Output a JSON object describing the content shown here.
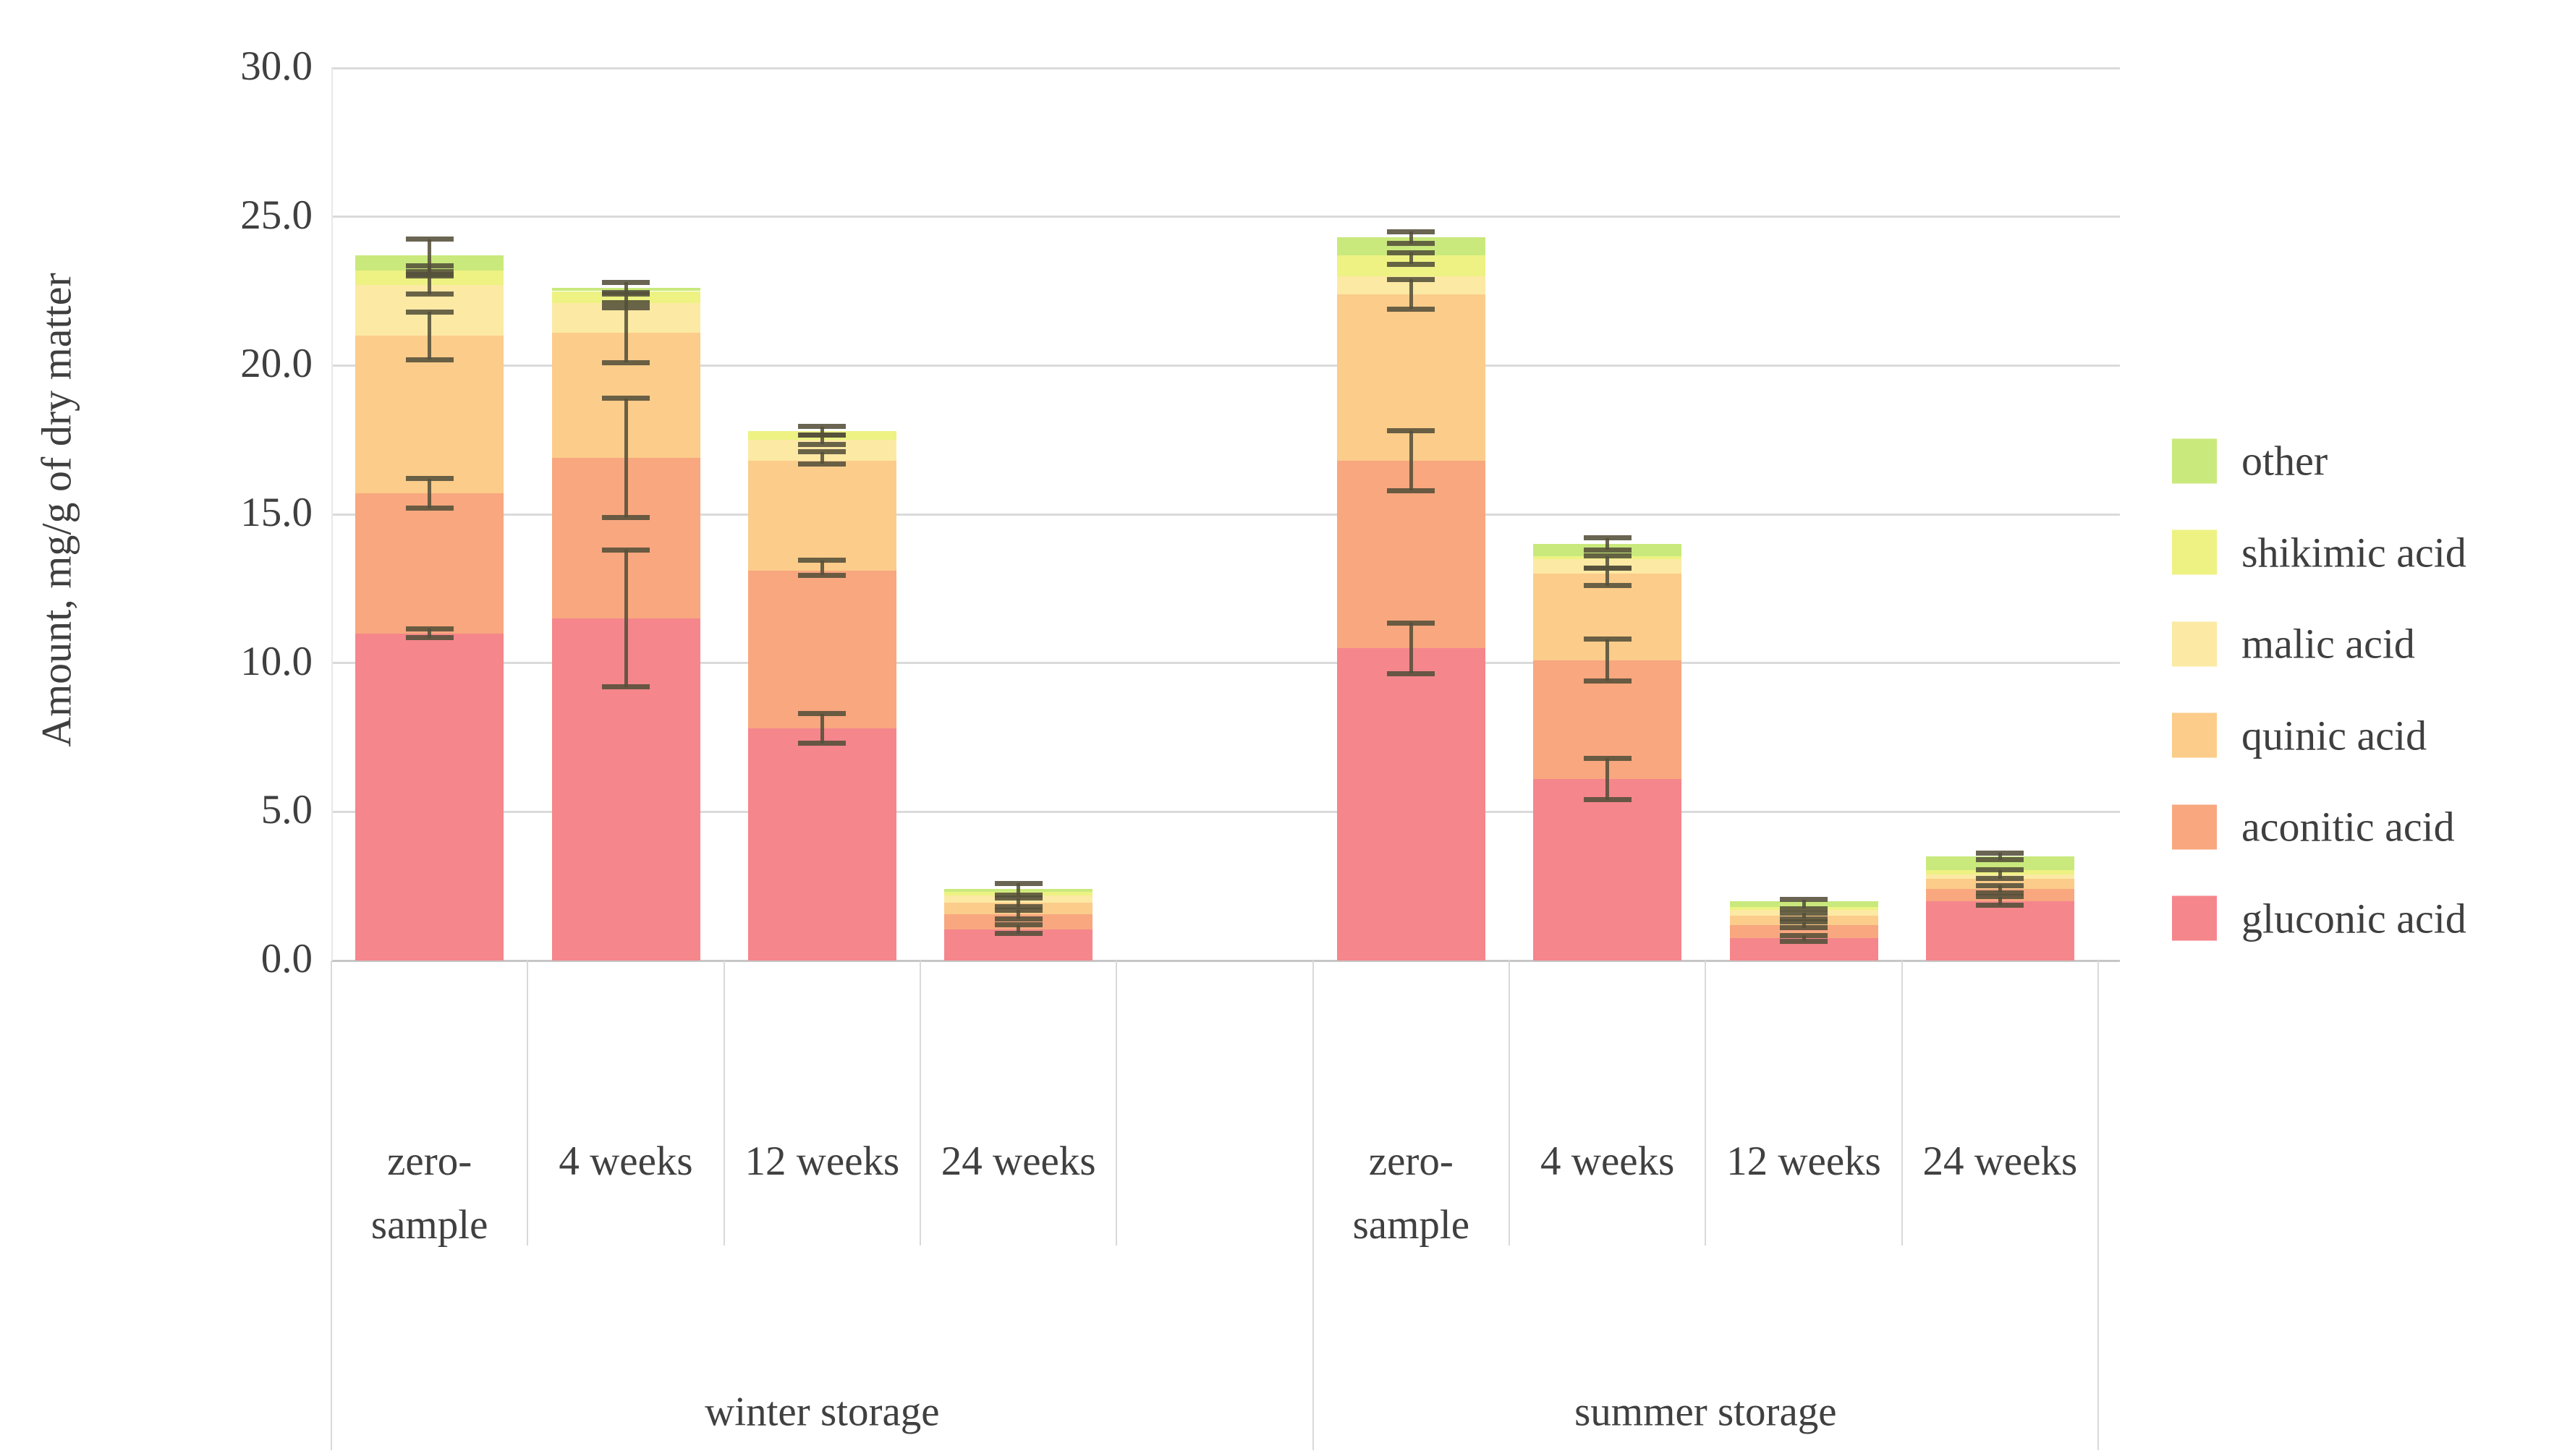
{
  "chart_data": {
    "type": "bar",
    "stacked": true,
    "title": "",
    "ylabel": "Amount, mg/g of dry matter",
    "ylim": [
      0,
      30
    ],
    "ytick_labels": [
      "0.0",
      "5.0",
      "10.0",
      "15.0",
      "20.0",
      "25.0",
      "30.0"
    ],
    "grid": true,
    "legend_position": "right",
    "legend_order_top_to_bottom": [
      "other",
      "shikimic acid",
      "malic acid",
      "quinic acid",
      "aconitic acid",
      "gluconic acid"
    ],
    "groups": [
      {
        "label": "winter storage",
        "categories": [
          "zero-\nsample",
          "4 weeks",
          "12 weeks",
          "24 weeks"
        ]
      },
      {
        "label": "summer storage",
        "categories": [
          "zero-\nsample",
          "4 weeks",
          "12 weeks",
          "24 weeks"
        ]
      }
    ],
    "series": [
      {
        "name": "gluconic acid",
        "color": "#f5868c",
        "values": [
          11.0,
          11.5,
          7.8,
          1.05,
          10.5,
          6.1,
          0.75,
          2.0
        ]
      },
      {
        "name": "aconitic acid",
        "color": "#f8a77f",
        "values": [
          4.7,
          5.4,
          5.3,
          0.5,
          6.3,
          4.0,
          0.45,
          0.4
        ]
      },
      {
        "name": "quinic acid",
        "color": "#fbcc8a",
        "values": [
          5.3,
          4.2,
          3.7,
          0.4,
          5.6,
          2.9,
          0.3,
          0.35
        ]
      },
      {
        "name": "malic acid",
        "color": "#fce9a4",
        "values": [
          1.7,
          1.0,
          0.7,
          0.25,
          0.6,
          0.5,
          0.2,
          0.15
        ]
      },
      {
        "name": "shikimic acid",
        "color": "#edf283",
        "values": [
          0.5,
          0.4,
          0.3,
          0.1,
          0.7,
          0.1,
          0.1,
          0.15
        ]
      },
      {
        "name": "other",
        "color": "#c9e97c",
        "values": [
          0.5,
          0.1,
          0.0,
          0.1,
          0.6,
          0.4,
          0.2,
          0.45
        ]
      }
    ],
    "bar_totals": [
      23.7,
      22.6,
      17.8,
      2.4,
      24.3,
      14.0,
      2.0,
      3.5
    ],
    "error_bars": [
      [
        {
          "y": 11.0,
          "e": 0.15
        },
        {
          "y": 15.7,
          "e": 0.5
        },
        {
          "y": 21.0,
          "e": 0.8
        },
        {
          "y": 22.7,
          "e": 0.3
        },
        {
          "y": 23.2,
          "e": 0.15
        },
        {
          "y": 23.7,
          "e": 0.55
        }
      ],
      [
        {
          "y": 11.5,
          "e": 2.3
        },
        {
          "y": 16.9,
          "e": 2.0
        },
        {
          "y": 21.1,
          "e": 1.0
        },
        {
          "y": 22.2,
          "e": 0.25
        },
        {
          "y": 22.6,
          "e": 0.2
        }
      ],
      [
        {
          "y": 7.8,
          "e": 0.5
        },
        {
          "y": 13.2,
          "e": 0.25
        },
        {
          "y": 16.9,
          "e": 0.2
        },
        {
          "y": 17.5,
          "e": 0.15
        },
        {
          "y": 17.8,
          "e": 0.15
        }
      ],
      [
        {
          "y": 1.05,
          "e": 0.15
        },
        {
          "y": 1.55,
          "e": 0.15
        },
        {
          "y": 1.95,
          "e": 0.15
        },
        {
          "y": 2.4,
          "e": 0.2
        }
      ],
      [
        {
          "y": 10.5,
          "e": 0.85
        },
        {
          "y": 16.8,
          "e": 1.0
        },
        {
          "y": 22.4,
          "e": 0.5
        },
        {
          "y": 23.6,
          "e": 0.2
        },
        {
          "y": 24.3,
          "e": 0.2
        }
      ],
      [
        {
          "y": 6.1,
          "e": 0.7
        },
        {
          "y": 10.1,
          "e": 0.7
        },
        {
          "y": 12.9,
          "e": 0.3
        },
        {
          "y": 13.4,
          "e": 0.2
        },
        {
          "y": 14.0,
          "e": 0.2
        }
      ],
      [
        {
          "y": 0.75,
          "e": 0.1
        },
        {
          "y": 1.2,
          "e": 0.1
        },
        {
          "y": 1.5,
          "e": 0.1
        },
        {
          "y": 1.9,
          "e": 0.15
        }
      ],
      [
        {
          "y": 2.0,
          "e": 0.15
        },
        {
          "y": 2.4,
          "e": 0.12
        },
        {
          "y": 2.9,
          "e": 0.15
        },
        {
          "y": 3.5,
          "e": 0.12
        }
      ]
    ]
  }
}
